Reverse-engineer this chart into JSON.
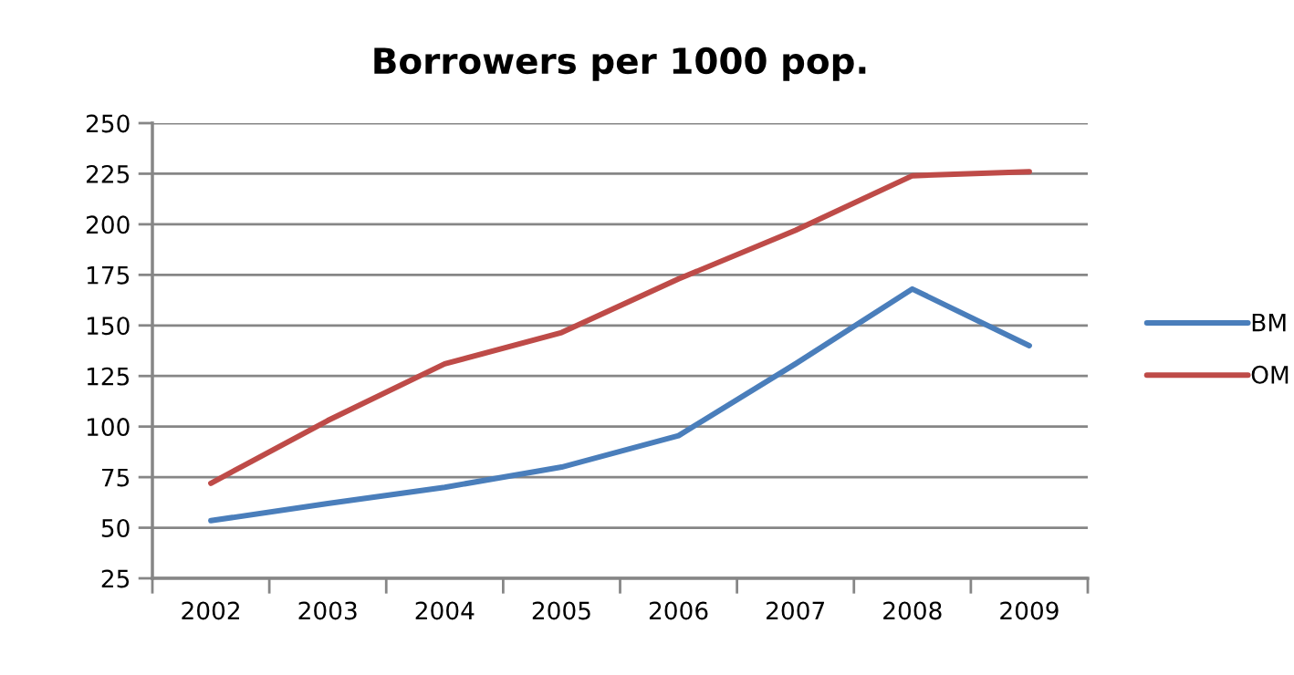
{
  "chart_data": {
    "type": "line",
    "title": "Borrowers per 1000 pop.",
    "categories": [
      "2002",
      "2003",
      "2004",
      "2005",
      "2006",
      "2007",
      "2008",
      "2009"
    ],
    "series": [
      {
        "name": "BM",
        "color": "#4a7ebb",
        "values": [
          53.5,
          62,
          70,
          80,
          95.5,
          131,
          168,
          140
        ]
      },
      {
        "name": "OM",
        "color": "#be4b48",
        "values": [
          72,
          103,
          131,
          146.5,
          173,
          197,
          224,
          226
        ]
      }
    ],
    "ylim": [
      25,
      250
    ],
    "yticks": [
      25,
      50,
      75,
      100,
      125,
      150,
      175,
      200,
      225,
      250
    ],
    "grid": "y",
    "legend": "right",
    "marker": "none",
    "line_style": "solid"
  }
}
